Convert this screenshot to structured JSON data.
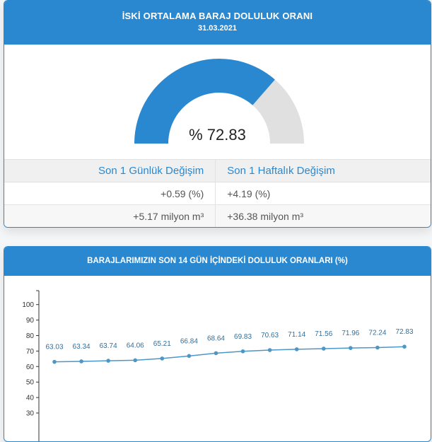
{
  "gauge_card": {
    "title": "İSKİ ORTALAMA BARAJ DOLULUK ORANI",
    "date": "31.03.2021",
    "gauge_value": 72.83,
    "gauge_label": "% 72.83",
    "gauge_color": "#2a88d0",
    "gauge_bg_color": "#e0e0e0"
  },
  "stats_table": {
    "headers": [
      "Son 1 Günlük Değişim",
      "Son 1 Haftalık Değişim"
    ],
    "rows": [
      [
        "+0.59 (%)",
        "+4.19 (%)"
      ],
      [
        "+5.17 milyon m³",
        "+36.38 milyon m³"
      ]
    ]
  },
  "chart_card": {
    "title": "BARAJLARIMIZIN SON 14 GÜN İÇİNDEKİ DOLULUK ORANLARI (%)"
  },
  "chart_data": {
    "type": "line",
    "title": "BARAJLARIMIZIN SON 14 GÜN İÇİNDEKİ DOLULUK ORANLARI (%)",
    "values": [
      63.03,
      63.34,
      63.74,
      64.06,
      65.21,
      66.84,
      68.64,
      69.83,
      70.63,
      71.14,
      71.56,
      71.96,
      72.24,
      72.83
    ],
    "data_labels": [
      "63.03",
      "63.34",
      "63.74",
      "64.06",
      "65.21",
      "66.84",
      "68.64",
      "69.83",
      "70.63",
      "71.14",
      "71.56",
      "71.96",
      "72.24",
      "72.83"
    ],
    "yticks": [
      "100",
      "90",
      "80",
      "70",
      "60",
      "50",
      "40",
      "30"
    ],
    "ylim": [
      0,
      100
    ],
    "grid": false,
    "line_color": "#4a97c8"
  }
}
